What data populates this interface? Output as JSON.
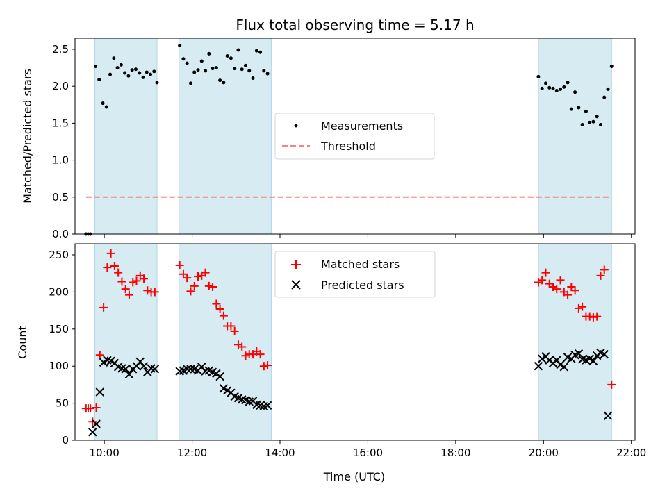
{
  "chart_data": [
    {
      "type": "scatter",
      "title": "Flux total observing time = 5.17 h",
      "ylabel": "Matched/Predicted stars",
      "xlim": [
        "09:20",
        "22:05"
      ],
      "ylim": [
        0,
        2.65
      ],
      "yticks": [
        "0.0",
        "0.5",
        "1.0",
        "1.5",
        "2.0",
        "2.5"
      ],
      "shaded_intervals": [
        [
          "09:47",
          "11:12"
        ],
        [
          "11:42",
          "13:48"
        ],
        [
          "19:53",
          "21:33"
        ]
      ],
      "shade_color": "#add8e6",
      "legend_position": "center",
      "series": [
        {
          "name": "Measurements",
          "marker": "dot",
          "color": "#000000",
          "points": [
            [
              "09:35",
              0.0
            ],
            [
              "09:38",
              0.0
            ],
            [
              "09:41",
              0.0
            ],
            [
              "09:48",
              2.27
            ],
            [
              "09:53",
              2.09
            ],
            [
              "09:58",
              1.77
            ],
            [
              "10:03",
              1.72
            ],
            [
              "10:08",
              2.16
            ],
            [
              "10:13",
              2.38
            ],
            [
              "10:18",
              2.25
            ],
            [
              "10:23",
              2.29
            ],
            [
              "10:28",
              2.18
            ],
            [
              "10:33",
              2.14
            ],
            [
              "10:38",
              2.22
            ],
            [
              "10:43",
              2.23
            ],
            [
              "10:48",
              2.18
            ],
            [
              "10:53",
              2.12
            ],
            [
              "10:58",
              2.19
            ],
            [
              "11:03",
              2.16
            ],
            [
              "11:08",
              2.2
            ],
            [
              "11:12",
              2.05
            ],
            [
              "11:43",
              2.55
            ],
            [
              "11:48",
              2.37
            ],
            [
              "11:53",
              2.31
            ],
            [
              "11:58",
              2.04
            ],
            [
              "12:03",
              2.19
            ],
            [
              "12:08",
              2.22
            ],
            [
              "12:13",
              2.34
            ],
            [
              "12:18",
              2.21
            ],
            [
              "12:23",
              2.44
            ],
            [
              "12:28",
              2.24
            ],
            [
              "12:33",
              2.25
            ],
            [
              "12:38",
              2.08
            ],
            [
              "12:43",
              2.05
            ],
            [
              "12:48",
              2.41
            ],
            [
              "12:53",
              2.38
            ],
            [
              "12:58",
              2.24
            ],
            [
              "13:03",
              2.49
            ],
            [
              "13:08",
              2.23
            ],
            [
              "13:13",
              2.28
            ],
            [
              "13:18",
              2.21
            ],
            [
              "13:23",
              2.11
            ],
            [
              "13:28",
              2.48
            ],
            [
              "13:33",
              2.46
            ],
            [
              "13:38",
              2.21
            ],
            [
              "13:43",
              2.17
            ],
            [
              "19:53",
              2.13
            ],
            [
              "19:58",
              1.97
            ],
            [
              "20:03",
              2.04
            ],
            [
              "20:08",
              1.98
            ],
            [
              "20:13",
              1.97
            ],
            [
              "20:18",
              1.94
            ],
            [
              "20:23",
              1.96
            ],
            [
              "20:28",
              1.99
            ],
            [
              "20:33",
              2.05
            ],
            [
              "20:38",
              1.69
            ],
            [
              "20:43",
              1.92
            ],
            [
              "20:48",
              1.71
            ],
            [
              "20:53",
              1.48
            ],
            [
              "20:58",
              1.66
            ],
            [
              "21:03",
              1.51
            ],
            [
              "21:08",
              1.52
            ],
            [
              "21:13",
              1.59
            ],
            [
              "21:18",
              1.48
            ],
            [
              "21:23",
              1.85
            ],
            [
              "21:28",
              1.96
            ],
            [
              "21:33",
              2.27
            ]
          ]
        },
        {
          "name": "Threshold",
          "type": "line",
          "style": "dashed",
          "color": "#ff7f7f",
          "x": [
            "09:35",
            "21:33"
          ],
          "y": [
            0.5,
            0.5
          ]
        }
      ]
    },
    {
      "type": "scatter",
      "xlabel": "Time (UTC)",
      "ylabel": "Count",
      "xlim": [
        "09:20",
        "22:05"
      ],
      "ylim": [
        0,
        265
      ],
      "xticks": [
        "10:00",
        "12:00",
        "14:00",
        "16:00",
        "18:00",
        "20:00",
        "22:00"
      ],
      "yticks": [
        "0",
        "50",
        "100",
        "150",
        "200",
        "250"
      ],
      "shaded_intervals": [
        [
          "09:47",
          "11:12"
        ],
        [
          "11:42",
          "13:48"
        ],
        [
          "19:53",
          "21:33"
        ]
      ],
      "shade_color": "#add8e6",
      "legend_position": "upper center",
      "series": [
        {
          "name": "Matched stars",
          "marker": "plus",
          "color": "#ff0000",
          "points": [
            [
              "09:35",
              43
            ],
            [
              "09:38",
              43
            ],
            [
              "09:41",
              43
            ],
            [
              "09:44",
              25
            ],
            [
              "09:49",
              44
            ],
            [
              "09:54",
              115
            ],
            [
              "09:59",
              179
            ],
            [
              "10:04",
              233
            ],
            [
              "10:09",
              252
            ],
            [
              "10:14",
              235
            ],
            [
              "10:19",
              226
            ],
            [
              "10:24",
              214
            ],
            [
              "10:29",
              204
            ],
            [
              "10:34",
              196
            ],
            [
              "10:39",
              213
            ],
            [
              "10:44",
              215
            ],
            [
              "10:49",
              222
            ],
            [
              "10:54",
              218
            ],
            [
              "10:59",
              202
            ],
            [
              "11:04",
              200
            ],
            [
              "11:09",
              200
            ],
            [
              "11:43",
              236
            ],
            [
              "11:48",
              224
            ],
            [
              "11:53",
              219
            ],
            [
              "11:58",
              201
            ],
            [
              "12:03",
              208
            ],
            [
              "12:08",
              221
            ],
            [
              "12:13",
              222
            ],
            [
              "12:18",
              226
            ],
            [
              "12:23",
              208
            ],
            [
              "12:28",
              207
            ],
            [
              "12:33",
              184
            ],
            [
              "12:38",
              177
            ],
            [
              "12:43",
              168
            ],
            [
              "12:48",
              154
            ],
            [
              "12:53",
              154
            ],
            [
              "12:58",
              147
            ],
            [
              "13:03",
              129
            ],
            [
              "13:08",
              126
            ],
            [
              "13:13",
              114
            ],
            [
              "13:18",
              116
            ],
            [
              "13:23",
              116
            ],
            [
              "13:28",
              120
            ],
            [
              "13:33",
              116
            ],
            [
              "13:38",
              100
            ],
            [
              "13:43",
              101
            ],
            [
              "19:53",
              213
            ],
            [
              "19:58",
              216
            ],
            [
              "20:03",
              226
            ],
            [
              "20:08",
              211
            ],
            [
              "20:13",
              207
            ],
            [
              "20:18",
              204
            ],
            [
              "20:23",
              216
            ],
            [
              "20:28",
              200
            ],
            [
              "20:33",
              196
            ],
            [
              "20:38",
              207
            ],
            [
              "20:43",
              202
            ],
            [
              "20:48",
              178
            ],
            [
              "20:53",
              180
            ],
            [
              "20:58",
              167
            ],
            [
              "21:03",
              167
            ],
            [
              "21:08",
              166
            ],
            [
              "21:13",
              167
            ],
            [
              "21:18",
              222
            ],
            [
              "21:23",
              230
            ],
            [
              "21:33",
              75
            ]
          ]
        },
        {
          "name": "Predicted stars",
          "marker": "x",
          "color": "#000000",
          "points": [
            [
              "09:44",
              11
            ],
            [
              "09:49",
              22
            ],
            [
              "09:54",
              65
            ],
            [
              "09:59",
              105
            ],
            [
              "10:04",
              108
            ],
            [
              "10:09",
              107
            ],
            [
              "10:14",
              104
            ],
            [
              "10:19",
              99
            ],
            [
              "10:24",
              97
            ],
            [
              "10:29",
              96
            ],
            [
              "10:34",
              89
            ],
            [
              "10:39",
              96
            ],
            [
              "10:44",
              100
            ],
            [
              "10:49",
              106
            ],
            [
              "10:54",
              100
            ],
            [
              "10:59",
              92
            ],
            [
              "11:04",
              97
            ],
            [
              "11:09",
              96
            ],
            [
              "11:43",
              93
            ],
            [
              "11:48",
              94
            ],
            [
              "11:53",
              96
            ],
            [
              "11:58",
              96
            ],
            [
              "12:03",
              96
            ],
            [
              "12:08",
              94
            ],
            [
              "12:13",
              99
            ],
            [
              "12:18",
              93
            ],
            [
              "12:23",
              94
            ],
            [
              "12:28",
              92
            ],
            [
              "12:33",
              90
            ],
            [
              "12:38",
              86
            ],
            [
              "12:43",
              70
            ],
            [
              "12:48",
              67
            ],
            [
              "12:53",
              64
            ],
            [
              "12:58",
              59
            ],
            [
              "13:03",
              57
            ],
            [
              "13:08",
              55
            ],
            [
              "13:13",
              54
            ],
            [
              "13:18",
              52
            ],
            [
              "13:23",
              53
            ],
            [
              "13:28",
              48
            ],
            [
              "13:33",
              47
            ],
            [
              "13:38",
              46
            ],
            [
              "13:43",
              47
            ],
            [
              "19:53",
              100
            ],
            [
              "19:58",
              110
            ],
            [
              "20:03",
              113
            ],
            [
              "20:08",
              108
            ],
            [
              "20:13",
              104
            ],
            [
              "20:18",
              108
            ],
            [
              "20:23",
              102
            ],
            [
              "20:28",
              99
            ],
            [
              "20:33",
              112
            ],
            [
              "20:38",
              110
            ],
            [
              "20:43",
              115
            ],
            [
              "20:48",
              117
            ],
            [
              "20:53",
              109
            ],
            [
              "20:58",
              108
            ],
            [
              "21:03",
              110
            ],
            [
              "21:08",
              107
            ],
            [
              "21:13",
              114
            ],
            [
              "21:18",
              118
            ],
            [
              "21:23",
              116
            ],
            [
              "21:28",
              33
            ]
          ]
        }
      ]
    }
  ]
}
